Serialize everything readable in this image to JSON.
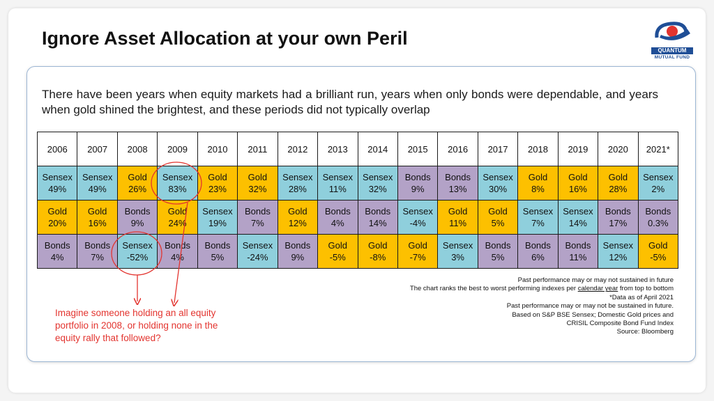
{
  "title": "Ignore Asset Allocation at your own Peril",
  "logo": {
    "name": "QUANTUM",
    "subtitle": "MUTUAL FUND"
  },
  "intro": "There have been years when equity markets had a brilliant run, years when only bonds were dependable, and years when gold shined the brightest, and these periods did not typically overlap",
  "table": {
    "years": [
      "2006",
      "2007",
      "2008",
      "2009",
      "2010",
      "2011",
      "2012",
      "2013",
      "2014",
      "2015",
      "2016",
      "2017",
      "2018",
      "2019",
      "2020",
      "2021*"
    ],
    "rows": [
      [
        {
          "asset": "Sensex",
          "value": "49%"
        },
        {
          "asset": "Sensex",
          "value": "49%"
        },
        {
          "asset": "Gold",
          "value": "26%"
        },
        {
          "asset": "Sensex",
          "value": "83%"
        },
        {
          "asset": "Gold",
          "value": "23%"
        },
        {
          "asset": "Gold",
          "value": "32%"
        },
        {
          "asset": "Sensex",
          "value": "28%"
        },
        {
          "asset": "Sensex",
          "value": "11%"
        },
        {
          "asset": "Sensex",
          "value": "32%"
        },
        {
          "asset": "Bonds",
          "value": "9%"
        },
        {
          "asset": "Bonds",
          "value": "13%"
        },
        {
          "asset": "Sensex",
          "value": "30%"
        },
        {
          "asset": "Gold",
          "value": "8%"
        },
        {
          "asset": "Gold",
          "value": "16%"
        },
        {
          "asset": "Gold",
          "value": "28%"
        },
        {
          "asset": "Sensex",
          "value": "2%"
        }
      ],
      [
        {
          "asset": "Gold",
          "value": "20%"
        },
        {
          "asset": "Gold",
          "value": "16%"
        },
        {
          "asset": "Bonds",
          "value": "9%"
        },
        {
          "asset": "Gold",
          "value": "24%"
        },
        {
          "asset": "Sensex",
          "value": "19%"
        },
        {
          "asset": "Bonds",
          "value": "7%"
        },
        {
          "asset": "Gold",
          "value": "12%"
        },
        {
          "asset": "Bonds",
          "value": "4%"
        },
        {
          "asset": "Bonds",
          "value": "14%"
        },
        {
          "asset": "Sensex",
          "value": "-4%"
        },
        {
          "asset": "Gold",
          "value": "11%"
        },
        {
          "asset": "Gold",
          "value": "5%"
        },
        {
          "asset": "Sensex",
          "value": "7%"
        },
        {
          "asset": "Sensex",
          "value": "14%"
        },
        {
          "asset": "Bonds",
          "value": "17%"
        },
        {
          "asset": "Bonds",
          "value": "0.3%"
        }
      ],
      [
        {
          "asset": "Bonds",
          "value": "4%"
        },
        {
          "asset": "Bonds",
          "value": "7%"
        },
        {
          "asset": "Sensex",
          "value": "-52%"
        },
        {
          "asset": "Bonds",
          "value": "4%"
        },
        {
          "asset": "Bonds",
          "value": "5%"
        },
        {
          "asset": "Sensex",
          "value": "-24%"
        },
        {
          "asset": "Bonds",
          "value": "9%"
        },
        {
          "asset": "Gold",
          "value": "-5%"
        },
        {
          "asset": "Gold",
          "value": "-8%"
        },
        {
          "asset": "Gold",
          "value": "-7%"
        },
        {
          "asset": "Sensex",
          "value": "3%"
        },
        {
          "asset": "Bonds",
          "value": "5%"
        },
        {
          "asset": "Bonds",
          "value": "6%"
        },
        {
          "asset": "Bonds",
          "value": "11%"
        },
        {
          "asset": "Sensex",
          "value": "12%"
        },
        {
          "asset": "Gold",
          "value": "-5%"
        }
      ]
    ]
  },
  "asset_colors": {
    "Sensex": "#8fcfdc",
    "Gold": "#fdc000",
    "Bonds": "#b3a2c7"
  },
  "notes": {
    "line1": "Past performance may or may not sustained in future",
    "line2_prefix": "The chart ranks the best to worst performing indexes per ",
    "line2_underlined": "calendar year",
    "line2_suffix": " from top to bottom",
    "line3": "*Data as of April 2021",
    "line4": "Past performance may or may not be sustained in future.",
    "line5": "Based on S&P BSE Sensex; Domestic Gold prices and",
    "line6": "CRISIL Composite Bond Fund Index",
    "line7": "Source: Bloomberg"
  },
  "callout": "Imagine someone holding an all equity portfolio in 2008, or holding none in the equity rally that followed?",
  "annotation_color": "#e3342f"
}
